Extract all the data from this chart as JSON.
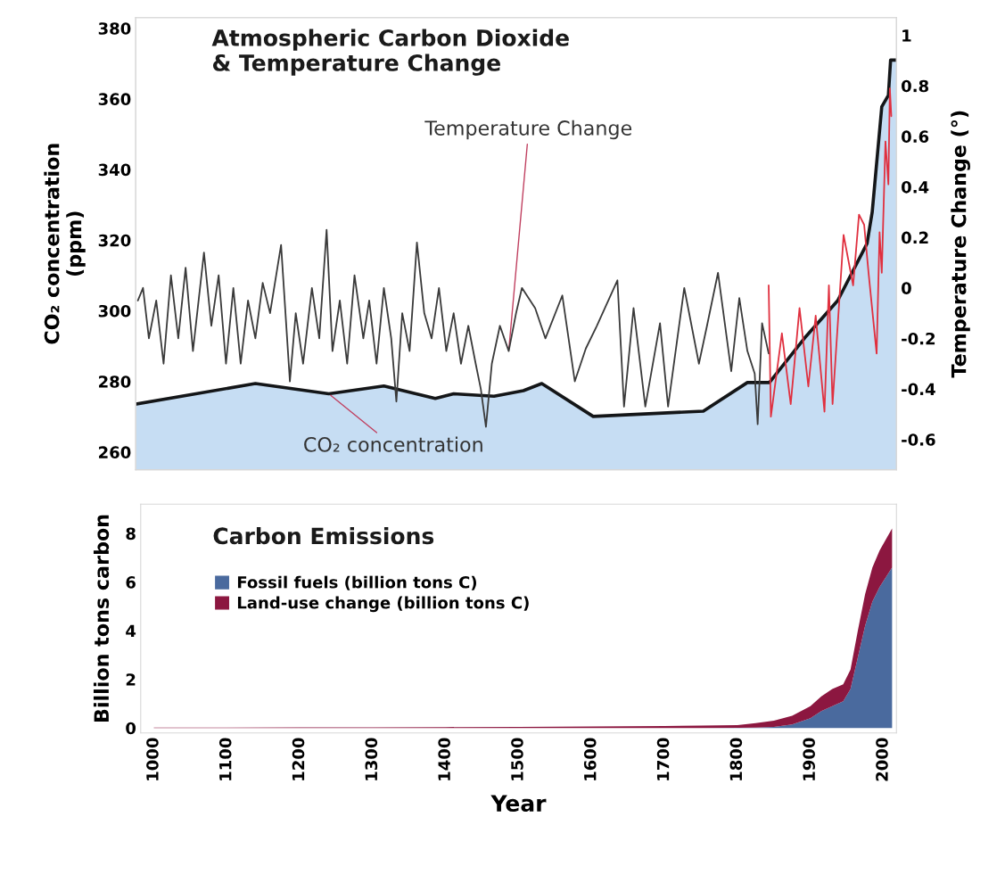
{
  "chart_data": [
    {
      "type": "line",
      "title": "Atmospheric Carbon Dioxide\n& Temperature Change",
      "ylabel": "CO₂ concentration\n(ppm)",
      "y2label": "Temperature Change (°)",
      "tick_labels": "y",
      "xlim": [
        982,
        2018
      ],
      "ylim": [
        255,
        383
      ],
      "yticks": [
        260,
        280,
        300,
        320,
        340,
        360,
        380
      ],
      "y2lim": [
        -0.72,
        1.07
      ],
      "y2ticks": [
        -0.6,
        -0.4,
        -0.2,
        0,
        0.2,
        0.4,
        0.6,
        0.8,
        1
      ],
      "series": [
        {
          "type": "area",
          "name": "CO₂ concentration",
          "color": "#c6ddf3",
          "x": [
            982,
            1145,
            1245,
            1320,
            1390,
            1415,
            1470,
            1510,
            1535,
            1605,
            1755,
            1815,
            1845,
            1895,
            1938,
            1978,
            1985,
            1998,
            2007,
            2010,
            2018
          ],
          "values": [
            273.6,
            279.4,
            276.5,
            278.7,
            275.2,
            276.5,
            275.8,
            277.4,
            279.4,
            270.1,
            271.6,
            279.7,
            279.7,
            292.8,
            302.9,
            319.1,
            328,
            357.8,
            361,
            371,
            371
          ]
        },
        {
          "type": "line",
          "name": "Temperature Change",
          "axis": "y2",
          "color": "#3a3a3a",
          "x": [
            985,
            992,
            1000,
            1010,
            1020,
            1030,
            1040,
            1050,
            1060,
            1075,
            1085,
            1095,
            1105,
            1115,
            1125,
            1135,
            1145,
            1155,
            1165,
            1180,
            1192,
            1200,
            1210,
            1222,
            1232,
            1242,
            1250,
            1260,
            1270,
            1280,
            1292,
            1300,
            1310,
            1320,
            1330,
            1337,
            1345,
            1355,
            1365,
            1375,
            1385,
            1395,
            1405,
            1415,
            1425,
            1435,
            1445,
            1452,
            1459,
            1467,
            1478,
            1490,
            1500,
            1508,
            1526,
            1540,
            1563,
            1580,
            1595,
            1610,
            1638,
            1647,
            1660,
            1676,
            1696,
            1707,
            1729,
            1749,
            1760,
            1775,
            1793,
            1804,
            1815,
            1825,
            1829,
            1835,
            1844
          ],
          "values": [
            -0.05,
            0.0,
            -0.2,
            -0.05,
            -0.3,
            0.05,
            -0.2,
            0.08,
            -0.25,
            0.14,
            -0.15,
            0.05,
            -0.3,
            0.0,
            -0.3,
            -0.05,
            -0.2,
            0.02,
            -0.1,
            0.17,
            -0.37,
            -0.1,
            -0.3,
            0.0,
            -0.2,
            0.23,
            -0.25,
            -0.05,
            -0.3,
            0.05,
            -0.2,
            -0.05,
            -0.3,
            0.0,
            -0.2,
            -0.45,
            -0.1,
            -0.25,
            0.18,
            -0.1,
            -0.2,
            0.0,
            -0.25,
            -0.1,
            -0.3,
            -0.15,
            -0.3,
            -0.4,
            -0.55,
            -0.3,
            -0.15,
            -0.25,
            -0.1,
            0.0,
            -0.08,
            -0.2,
            -0.03,
            -0.37,
            -0.24,
            -0.15,
            0.03,
            -0.47,
            -0.08,
            -0.47,
            -0.14,
            -0.47,
            0.0,
            -0.3,
            -0.15,
            0.06,
            -0.33,
            -0.04,
            -0.25,
            -0.34,
            -0.54,
            -0.14,
            -0.26
          ]
        },
        {
          "type": "line",
          "axis": "y2",
          "color": "#e0303f",
          "x": [
            1844,
            1847,
            1862,
            1874,
            1886,
            1898,
            1908,
            1920,
            1926,
            1931,
            1946,
            1959,
            1967,
            1974,
            1980,
            1991,
            1995,
            1998,
            2003,
            2007,
            2009,
            2011
          ],
          "values": [
            0.01,
            -0.51,
            -0.18,
            -0.46,
            -0.08,
            -0.39,
            -0.11,
            -0.49,
            0.01,
            -0.46,
            0.21,
            0.01,
            0.29,
            0.25,
            0.06,
            -0.26,
            0.22,
            0.06,
            0.58,
            0.41,
            0.79,
            0.68
          ]
        }
      ]
    },
    {
      "type": "area",
      "stacked": true,
      "title": "Carbon Emissions",
      "xlabel": "Year",
      "ylabel": "Billion tons carbon",
      "legend": "top left",
      "xlim": [
        982,
        2018
      ],
      "xticks": [
        1000,
        1100,
        1200,
        1300,
        1400,
        1500,
        1600,
        1700,
        1800,
        1900,
        2000
      ],
      "ylim": [
        -0.2,
        9.2
      ],
      "yticks": [
        0,
        2,
        4,
        6,
        8
      ],
      "x": [
        1000,
        1100,
        1200,
        1300,
        1400,
        1500,
        1600,
        1700,
        1750,
        1800,
        1825,
        1850,
        1875,
        1900,
        1915,
        1930,
        1945,
        1955,
        1965,
        1975,
        1985,
        1995,
        2012
      ],
      "series": [
        {
          "name": "Fossil fuels (billion tons C)",
          "color": "#4a6a9e",
          "values": [
            0,
            0,
            0,
            0,
            0,
            0,
            0,
            0,
            0,
            0.01,
            0.02,
            0.05,
            0.15,
            0.4,
            0.7,
            0.9,
            1.1,
            1.6,
            2.9,
            4.2,
            5.2,
            5.8,
            6.6
          ]
        },
        {
          "name": "Land-use change (billion tons C)",
          "color": "#8c1740",
          "values": [
            0.02,
            0.02,
            0.03,
            0.03,
            0.04,
            0.05,
            0.06,
            0.08,
            0.1,
            0.11,
            0.18,
            0.25,
            0.35,
            0.5,
            0.6,
            0.7,
            0.7,
            0.8,
            1.1,
            1.3,
            1.4,
            1.5,
            1.6
          ]
        }
      ]
    }
  ]
}
